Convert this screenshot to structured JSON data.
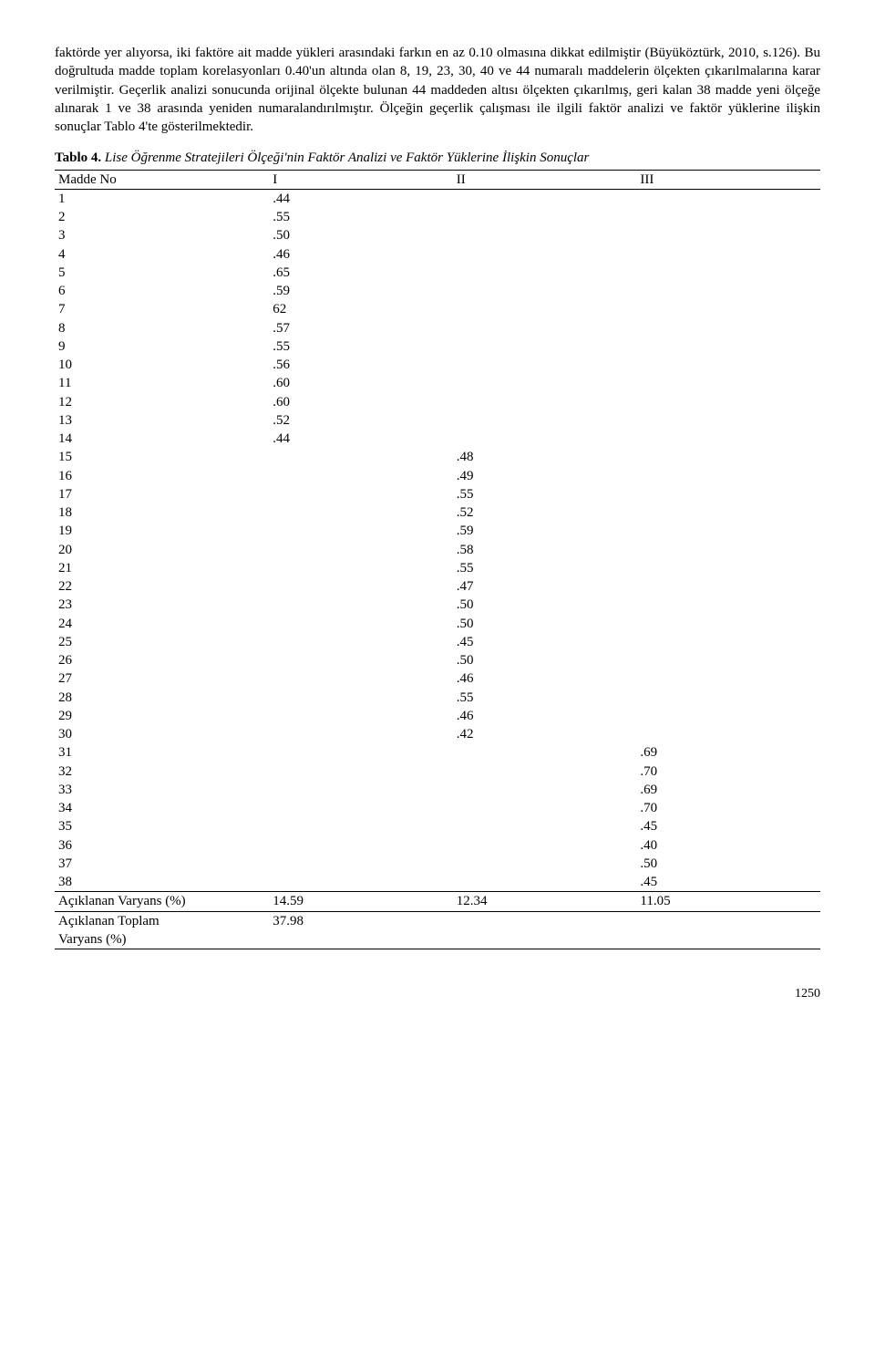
{
  "paragraph": "faktörde yer alıyorsa, iki faktöre ait madde yükleri arasındaki farkın en az 0.10 olmasına dikkat edilmiştir (Büyüköztürk, 2010, s.126). Bu doğrultuda madde toplam korelasyonları 0.40'un altında olan 8, 19, 23, 30, 40 ve 44 numaralı maddelerin ölçekten çıkarılmalarına karar verilmiştir. Geçerlik analizi sonucunda orijinal ölçekte bulunan 44 maddeden altısı ölçekten çıkarılmış, geri kalan 38 madde yeni ölçeğe alınarak 1 ve 38 arasında yeniden numaralandırılmıştır. Ölçeğin geçerlik çalışması ile ilgili faktör analizi ve faktör yüklerine ilişkin sonuçlar Tablo 4'te gösterilmektedir.",
  "table_caption_bold": "Tablo 4.",
  "table_caption_ital": "Lise Öğrenme Stratejileri Ölçeği'nin Faktör Analizi ve Faktör Yüklerine İlişkin Sonuçlar",
  "headers": {
    "madde": "Madde No",
    "c1": "I",
    "c2": "II",
    "c3": "III"
  },
  "rows": [
    {
      "no": "1",
      "c1": ".44",
      "c2": "",
      "c3": ""
    },
    {
      "no": "2",
      "c1": ".55",
      "c2": "",
      "c3": ""
    },
    {
      "no": "3",
      "c1": ".50",
      "c2": "",
      "c3": ""
    },
    {
      "no": "4",
      "c1": ".46",
      "c2": "",
      "c3": ""
    },
    {
      "no": "5",
      "c1": ".65",
      "c2": "",
      "c3": ""
    },
    {
      "no": "6",
      "c1": ".59",
      "c2": "",
      "c3": ""
    },
    {
      "no": "7",
      "c1": "62",
      "c2": "",
      "c3": ""
    },
    {
      "no": "8",
      "c1": ".57",
      "c2": "",
      "c3": ""
    },
    {
      "no": "9",
      "c1": ".55",
      "c2": "",
      "c3": ""
    },
    {
      "no": "10",
      "c1": ".56",
      "c2": "",
      "c3": ""
    },
    {
      "no": "11",
      "c1": ".60",
      "c2": "",
      "c3": ""
    },
    {
      "no": "12",
      "c1": ".60",
      "c2": "",
      "c3": ""
    },
    {
      "no": "13",
      "c1": ".52",
      "c2": "",
      "c3": ""
    },
    {
      "no": "14",
      "c1": ".44",
      "c2": "",
      "c3": ""
    },
    {
      "no": "15",
      "c1": "",
      "c2": ".48",
      "c3": ""
    },
    {
      "no": "16",
      "c1": "",
      "c2": ".49",
      "c3": ""
    },
    {
      "no": "17",
      "c1": "",
      "c2": ".55",
      "c3": ""
    },
    {
      "no": "18",
      "c1": "",
      "c2": ".52",
      "c3": ""
    },
    {
      "no": "19",
      "c1": "",
      "c2": ".59",
      "c3": ""
    },
    {
      "no": "20",
      "c1": "",
      "c2": ".58",
      "c3": ""
    },
    {
      "no": "21",
      "c1": "",
      "c2": ".55",
      "c3": ""
    },
    {
      "no": "22",
      "c1": "",
      "c2": ".47",
      "c3": ""
    },
    {
      "no": "23",
      "c1": "",
      "c2": ".50",
      "c3": ""
    },
    {
      "no": "24",
      "c1": "",
      "c2": ".50",
      "c3": ""
    },
    {
      "no": "25",
      "c1": "",
      "c2": ".45",
      "c3": ""
    },
    {
      "no": "26",
      "c1": "",
      "c2": ".50",
      "c3": ""
    },
    {
      "no": "27",
      "c1": "",
      "c2": ".46",
      "c3": ""
    },
    {
      "no": "28",
      "c1": "",
      "c2": ".55",
      "c3": ""
    },
    {
      "no": "29",
      "c1": "",
      "c2": ".46",
      "c3": ""
    },
    {
      "no": "30",
      "c1": "",
      "c2": ".42",
      "c3": ""
    },
    {
      "no": "31",
      "c1": "",
      "c2": "",
      "c3": ".69"
    },
    {
      "no": "32",
      "c1": "",
      "c2": "",
      "c3": ".70"
    },
    {
      "no": "33",
      "c1": "",
      "c2": "",
      "c3": ".69"
    },
    {
      "no": "34",
      "c1": "",
      "c2": "",
      "c3": ".70"
    },
    {
      "no": "35",
      "c1": "",
      "c2": "",
      "c3": ".45"
    },
    {
      "no": "36",
      "c1": "",
      "c2": "",
      "c3": ".40"
    },
    {
      "no": "37",
      "c1": "",
      "c2": "",
      "c3": ".50"
    },
    {
      "no": "38",
      "c1": "",
      "c2": "",
      "c3": ".45"
    }
  ],
  "variance_row": {
    "label": "Açıklanan Varyans (%)",
    "c1": "14.59",
    "c2": "12.34",
    "c3": "11.05"
  },
  "total_variance_row": {
    "label1": "Açıklanan Toplam",
    "label2": "Varyans (%)",
    "c1": "37.98",
    "c2": "",
    "c3": ""
  },
  "page_number": "1250"
}
